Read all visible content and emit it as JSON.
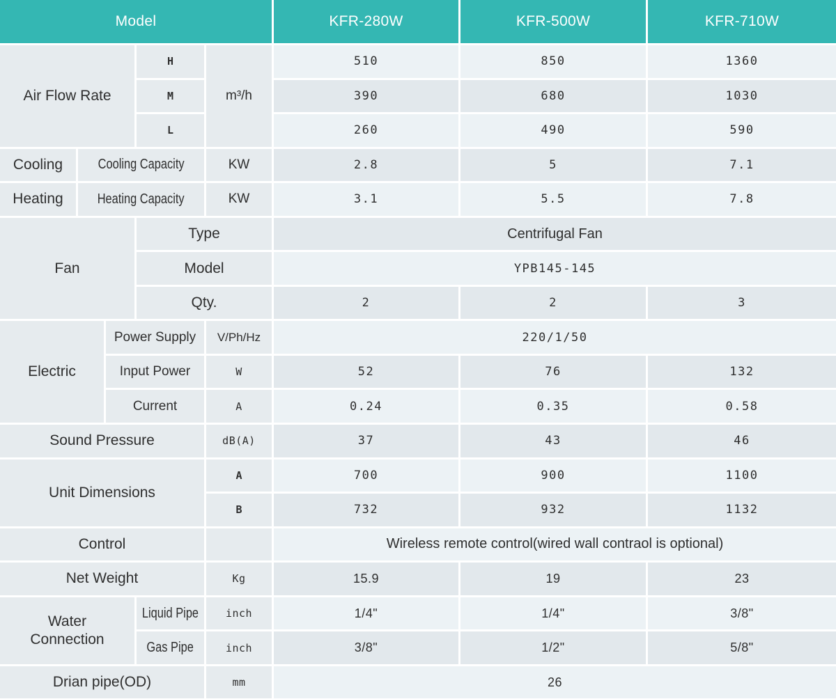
{
  "colors": {
    "header_bg": "#34b7b3",
    "header_text": "#ffffff",
    "label_bg": "#e6ebee",
    "row_light": "#ecf2f5",
    "row_dark": "#e2e8ec",
    "text": "#2e2e2e"
  },
  "table": {
    "header": {
      "model": "Model",
      "cols": [
        "KFR-280W",
        "KFR-500W",
        "KFR-710W"
      ]
    },
    "air_flow": {
      "label": "Air Flow Rate",
      "unit": "m³/h",
      "speeds": [
        "H",
        "M",
        "L"
      ],
      "h": [
        "510",
        "850",
        "1360"
      ],
      "m": [
        "390",
        "680",
        "1030"
      ],
      "l": [
        "260",
        "490",
        "590"
      ]
    },
    "cooling": {
      "label": "Cooling",
      "sub": "Cooling Capacity",
      "unit": "KW",
      "values": [
        "2.8",
        "5",
        "7.1"
      ]
    },
    "heating": {
      "label": "Heating",
      "sub": "Heating Capacity",
      "unit": "KW",
      "values": [
        "3.1",
        "5.5",
        "7.8"
      ]
    },
    "fan": {
      "label": "Fan",
      "type_label": "Type",
      "type_value": "Centrifugal Fan",
      "model_label": "Model",
      "model_value": "YPB145-145",
      "qty_label": "Qty.",
      "qty_values": [
        "2",
        "2",
        "3"
      ]
    },
    "electric": {
      "label": "Electric",
      "power_supply": {
        "label": "Power Supply",
        "unit": "V/Ph/Hz",
        "value": "220/1/50"
      },
      "input_power": {
        "label": "Input Power",
        "unit": "W",
        "values": [
          "52",
          "76",
          "132"
        ]
      },
      "current": {
        "label": "Current",
        "unit": "A",
        "values": [
          "0.24",
          "0.35",
          "0.58"
        ]
      }
    },
    "sound_pressure": {
      "label": "Sound Pressure",
      "unit": "dB(A)",
      "values": [
        "37",
        "43",
        "46"
      ]
    },
    "unit_dimensions": {
      "label": "Unit Dimensions",
      "a": {
        "label": "A",
        "values": [
          "700",
          "900",
          "1100"
        ]
      },
      "b": {
        "label": "B",
        "values": [
          "732",
          "932",
          "1132"
        ]
      }
    },
    "control": {
      "label": "Control",
      "value": "Wireless remote control(wired wall contraol is optional)"
    },
    "net_weight": {
      "label": "Net Weight",
      "unit": "Kg",
      "values": [
        "15.9",
        "19",
        "23"
      ]
    },
    "water_connection": {
      "label": "Water Connection",
      "liquid": {
        "label": "Liquid Pipe",
        "unit": "inch",
        "values": [
          "1/4\"",
          "1/4\"",
          "3/8\""
        ]
      },
      "gas": {
        "label": "Gas Pipe",
        "unit": "inch",
        "values": [
          "3/8\"",
          "1/2\"",
          "5/8\""
        ]
      }
    },
    "drain": {
      "label": "Drian pipe(OD)",
      "unit": "mm",
      "value": "26"
    }
  }
}
